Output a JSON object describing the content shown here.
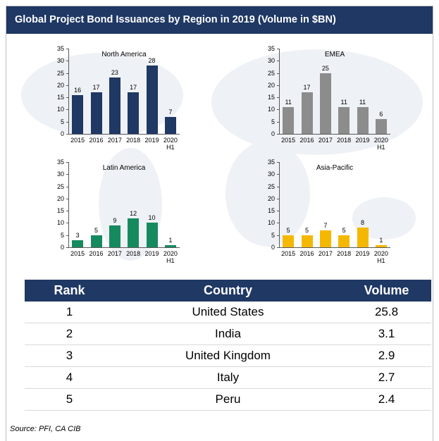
{
  "title": "Global Project Bond Issuances by Region in 2019 (Volume in $BN)",
  "chart_data": [
    {
      "type": "bar",
      "title": "North America",
      "categories": [
        "2015",
        "2016",
        "2017",
        "2018",
        "2019",
        "2020 H1"
      ],
      "values": [
        16,
        17,
        23,
        17,
        28,
        7
      ],
      "color": "#1f3864",
      "ylim": [
        0,
        35
      ],
      "yticks": [
        0,
        5,
        10,
        15,
        20,
        25,
        30,
        35
      ]
    },
    {
      "type": "bar",
      "title": "EMEA",
      "categories": [
        "2015",
        "2016",
        "2017",
        "2018",
        "2019",
        "2020 H1"
      ],
      "values": [
        11,
        17,
        25,
        11,
        11,
        6
      ],
      "color": "#8c8c8c",
      "ylim": [
        0,
        35
      ],
      "yticks": [
        0,
        5,
        10,
        15,
        20,
        25,
        30,
        35
      ]
    },
    {
      "type": "bar",
      "title": "Latin America",
      "categories": [
        "2015",
        "2016",
        "2017",
        "2018",
        "2019",
        "2020 H1"
      ],
      "values": [
        3,
        5,
        9,
        12,
        10,
        1
      ],
      "color": "#168a5f",
      "ylim": [
        0,
        35
      ],
      "yticks": [
        0,
        5,
        10,
        15,
        20,
        25,
        30,
        35
      ]
    },
    {
      "type": "bar",
      "title": "Asia-Pacific",
      "categories": [
        "2015",
        "2016",
        "2017",
        "2018",
        "2019",
        "2020 H1"
      ],
      "values": [
        5,
        5,
        7,
        5,
        8,
        1
      ],
      "color": "#f5b800",
      "ylim": [
        0,
        35
      ],
      "yticks": [
        0,
        5,
        10,
        15,
        20,
        25,
        30,
        35
      ]
    }
  ],
  "table": {
    "headers": [
      "Rank",
      "Country",
      "Volume"
    ],
    "rows": [
      [
        1,
        "United States",
        25.8
      ],
      [
        2,
        "India",
        3.1
      ],
      [
        3,
        "United Kingdom",
        2.9
      ],
      [
        4,
        "Italy",
        2.7
      ],
      [
        5,
        "Peru",
        2.4
      ]
    ]
  },
  "source": "Source: PFI, CA CIB"
}
